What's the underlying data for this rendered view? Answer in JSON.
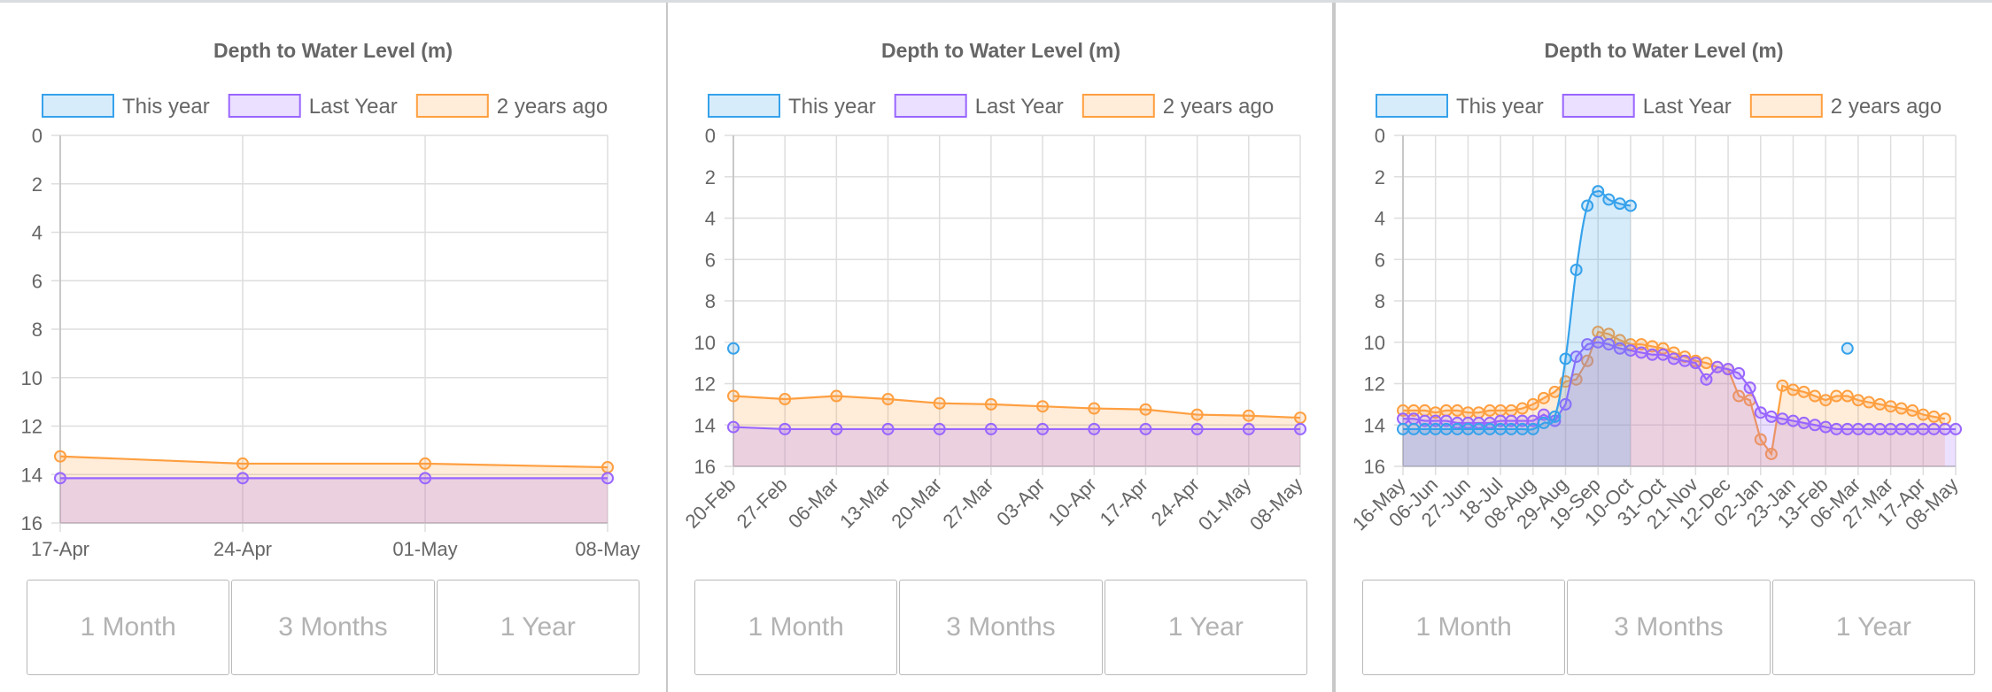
{
  "colors": {
    "this_year": "#36a2eb",
    "last_year": "#9966ff",
    "two_years_ago": "#ff9f40"
  },
  "panels": [
    {
      "buttons": [
        "1 Month",
        "3 Months",
        "1 Year"
      ],
      "chart_data": {
        "type": "line",
        "title": "Depth to Water Level (m)",
        "y_reversed": true,
        "ylim": [
          0,
          16
        ],
        "y_ticks": [
          0,
          2,
          4,
          6,
          8,
          10,
          12,
          14,
          16
        ],
        "x_tick_labels": [
          "17-Apr",
          "24-Apr",
          "01-May",
          "08-May"
        ],
        "x_label_rotation": 0,
        "grid": true,
        "legend": "top",
        "series": [
          {
            "name": "This year",
            "color_key": "this_year",
            "fill": true,
            "smooth": false,
            "points": []
          },
          {
            "name": "Last Year",
            "color_key": "last_year",
            "fill": true,
            "smooth": false,
            "points": [
              [
                0,
                14.15
              ],
              [
                1,
                14.15
              ],
              [
                2,
                14.15
              ],
              [
                3,
                14.15
              ]
            ]
          },
          {
            "name": "2 years ago",
            "color_key": "two_years_ago",
            "fill": true,
            "smooth": false,
            "points": [
              [
                0,
                13.25
              ],
              [
                1,
                13.55
              ],
              [
                2,
                13.55
              ],
              [
                3,
                13.7
              ]
            ]
          }
        ]
      }
    },
    {
      "buttons": [
        "1 Month",
        "3 Months",
        "1 Year"
      ],
      "chart_data": {
        "type": "line",
        "title": "Depth to Water Level (m)",
        "y_reversed": true,
        "ylim": [
          0,
          16
        ],
        "y_ticks": [
          0,
          2,
          4,
          6,
          8,
          10,
          12,
          14,
          16
        ],
        "x_tick_labels": [
          "20-Feb",
          "27-Feb",
          "06-Mar",
          "13-Mar",
          "20-Mar",
          "27-Mar",
          "03-Apr",
          "10-Apr",
          "17-Apr",
          "24-Apr",
          "01-May",
          "08-May"
        ],
        "x_label_rotation": -45,
        "grid": true,
        "legend": "top",
        "series": [
          {
            "name": "This year",
            "color_key": "this_year",
            "fill": true,
            "smooth": false,
            "points": [
              [
                0,
                10.3
              ]
            ]
          },
          {
            "name": "Last Year",
            "color_key": "last_year",
            "fill": true,
            "smooth": false,
            "points": [
              [
                0,
                14.1
              ],
              [
                1,
                14.2
              ],
              [
                2,
                14.2
              ],
              [
                3,
                14.2
              ],
              [
                4,
                14.2
              ],
              [
                5,
                14.2
              ],
              [
                6,
                14.2
              ],
              [
                7,
                14.2
              ],
              [
                8,
                14.2
              ],
              [
                9,
                14.2
              ],
              [
                10,
                14.2
              ],
              [
                11,
                14.2
              ]
            ]
          },
          {
            "name": "2 years ago",
            "color_key": "two_years_ago",
            "fill": true,
            "smooth": false,
            "points": [
              [
                0,
                12.6
              ],
              [
                1,
                12.75
              ],
              [
                2,
                12.6
              ],
              [
                3,
                12.75
              ],
              [
                4,
                12.95
              ],
              [
                5,
                13.0
              ],
              [
                6,
                13.1
              ],
              [
                7,
                13.2
              ],
              [
                8,
                13.25
              ],
              [
                9,
                13.5
              ],
              [
                10,
                13.55
              ],
              [
                11,
                13.65
              ]
            ]
          }
        ]
      }
    },
    {
      "buttons": [
        "1 Month",
        "3 Months",
        "1 Year"
      ],
      "chart_data": {
        "type": "line",
        "title": "Depth to Water Level (m)",
        "y_reversed": true,
        "ylim": [
          0,
          16
        ],
        "y_ticks": [
          0,
          2,
          4,
          6,
          8,
          10,
          12,
          14,
          16
        ],
        "x_tick_labels": [
          "16-May",
          "06-Jun",
          "27-Jun",
          "18-Jul",
          "08-Aug",
          "29-Aug",
          "19-Sep",
          "10-Oct",
          "31-Oct",
          "21-Nov",
          "12-Dec",
          "02-Jan",
          "23-Jan",
          "13-Feb",
          "06-Mar",
          "27-Mar",
          "17-Apr",
          "08-May"
        ],
        "x_label_rotation": -45,
        "grid": true,
        "legend": "top",
        "series": [
          {
            "name": "This year",
            "color_key": "this_year",
            "fill": true,
            "smooth": true,
            "points": [
              [
                0,
                14.2
              ],
              [
                0.33,
                14.2
              ],
              [
                0.67,
                14.2
              ],
              [
                1,
                14.2
              ],
              [
                1.33,
                14.2
              ],
              [
                1.67,
                14.2
              ],
              [
                2,
                14.2
              ],
              [
                2.33,
                14.2
              ],
              [
                2.67,
                14.2
              ],
              [
                3,
                14.2
              ],
              [
                3.33,
                14.2
              ],
              [
                3.67,
                14.2
              ],
              [
                4,
                14.2
              ],
              [
                4.33,
                13.9
              ],
              [
                4.67,
                13.6
              ],
              [
                5,
                10.8
              ],
              [
                5.33,
                6.5
              ],
              [
                5.67,
                3.4
              ],
              [
                6,
                2.7
              ],
              [
                6.33,
                3.1
              ],
              [
                6.67,
                3.3
              ],
              [
                7,
                3.4
              ]
            ],
            "extra_points": [
              [
                13.67,
                10.3
              ]
            ]
          },
          {
            "name": "Last Year",
            "color_key": "last_year",
            "fill": true,
            "smooth": false,
            "points": [
              [
                0,
                13.7
              ],
              [
                0.33,
                13.7
              ],
              [
                0.67,
                13.8
              ],
              [
                1,
                13.8
              ],
              [
                1.33,
                13.8
              ],
              [
                1.67,
                13.9
              ],
              [
                2,
                13.9
              ],
              [
                2.33,
                13.9
              ],
              [
                2.67,
                13.9
              ],
              [
                3,
                13.8
              ],
              [
                3.33,
                13.8
              ],
              [
                3.67,
                13.8
              ],
              [
                4,
                13.8
              ],
              [
                4.33,
                13.5
              ],
              [
                4.67,
                13.8
              ],
              [
                5,
                13.0
              ],
              [
                5.33,
                10.7
              ],
              [
                5.67,
                10.1
              ],
              [
                6,
                10.0
              ],
              [
                6.33,
                10.1
              ],
              [
                6.67,
                10.3
              ],
              [
                7,
                10.4
              ],
              [
                7.33,
                10.5
              ],
              [
                7.67,
                10.6
              ],
              [
                8,
                10.6
              ],
              [
                8.33,
                10.8
              ],
              [
                8.67,
                10.9
              ],
              [
                9,
                11.0
              ],
              [
                9.33,
                11.8
              ],
              [
                9.67,
                11.2
              ],
              [
                10,
                11.3
              ],
              [
                10.33,
                11.5
              ],
              [
                10.67,
                12.2
              ],
              [
                11,
                13.4
              ],
              [
                11.33,
                13.6
              ],
              [
                11.67,
                13.7
              ],
              [
                12,
                13.8
              ],
              [
                12.33,
                13.9
              ],
              [
                12.67,
                14.0
              ],
              [
                13,
                14.1
              ],
              [
                13.33,
                14.2
              ],
              [
                13.67,
                14.2
              ],
              [
                14,
                14.2
              ],
              [
                14.33,
                14.2
              ],
              [
                14.67,
                14.2
              ],
              [
                15,
                14.2
              ],
              [
                15.33,
                14.2
              ],
              [
                15.67,
                14.2
              ],
              [
                16,
                14.2
              ],
              [
                16.33,
                14.2
              ],
              [
                16.67,
                14.2
              ],
              [
                17,
                14.2
              ]
            ]
          },
          {
            "name": "2 years ago",
            "color_key": "two_years_ago",
            "fill": true,
            "smooth": false,
            "points": [
              [
                0,
                13.3
              ],
              [
                0.33,
                13.3
              ],
              [
                0.67,
                13.3
              ],
              [
                1,
                13.4
              ],
              [
                1.33,
                13.3
              ],
              [
                1.67,
                13.3
              ],
              [
                2,
                13.4
              ],
              [
                2.33,
                13.4
              ],
              [
                2.67,
                13.3
              ],
              [
                3,
                13.3
              ],
              [
                3.33,
                13.3
              ],
              [
                3.67,
                13.2
              ],
              [
                4,
                13.0
              ],
              [
                4.33,
                12.7
              ],
              [
                4.67,
                12.4
              ],
              [
                5,
                11.9
              ],
              [
                5.33,
                11.8
              ],
              [
                5.67,
                10.9
              ],
              [
                6,
                9.5
              ],
              [
                6.33,
                9.6
              ],
              [
                6.67,
                9.9
              ],
              [
                7,
                10.1
              ],
              [
                7.33,
                10.1
              ],
              [
                7.67,
                10.2
              ],
              [
                8,
                10.3
              ],
              [
                8.33,
                10.5
              ],
              [
                8.67,
                10.7
              ],
              [
                9,
                10.9
              ],
              [
                9.33,
                11.0
              ],
              [
                9.67,
                11.2
              ],
              [
                10,
                11.3
              ],
              [
                10.33,
                12.6
              ],
              [
                10.67,
                12.8
              ],
              [
                11,
                14.7
              ],
              [
                11.33,
                15.4
              ],
              [
                11.67,
                12.1
              ],
              [
                12,
                12.3
              ],
              [
                12.33,
                12.4
              ],
              [
                12.67,
                12.6
              ],
              [
                13,
                12.8
              ],
              [
                13.33,
                12.6
              ],
              [
                13.67,
                12.6
              ],
              [
                14,
                12.8
              ],
              [
                14.33,
                12.9
              ],
              [
                14.67,
                13.0
              ],
              [
                15,
                13.1
              ],
              [
                15.33,
                13.2
              ],
              [
                15.67,
                13.3
              ],
              [
                16,
                13.5
              ],
              [
                16.33,
                13.6
              ],
              [
                16.67,
                13.7
              ]
            ]
          }
        ]
      }
    }
  ]
}
